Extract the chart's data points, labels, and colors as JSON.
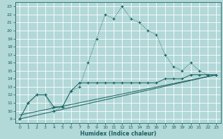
{
  "xlabel": "Humidex (Indice chaleur)",
  "bg_color": "#b2d8d8",
  "grid_color": "#ffffff",
  "line_color": "#1a6060",
  "xlim": [
    -0.5,
    23.5
  ],
  "ylim": [
    8.5,
    23.5
  ],
  "xticks": [
    0,
    1,
    2,
    3,
    4,
    5,
    6,
    7,
    8,
    9,
    10,
    11,
    12,
    13,
    14,
    15,
    16,
    17,
    18,
    19,
    20,
    21,
    22,
    23
  ],
  "yticks": [
    9,
    10,
    11,
    12,
    13,
    14,
    15,
    16,
    17,
    18,
    19,
    20,
    21,
    22,
    23
  ],
  "curve1_x": [
    0,
    1,
    2,
    3,
    4,
    5,
    6,
    7,
    8,
    9,
    10,
    11,
    12,
    13,
    14,
    15,
    16,
    17,
    18,
    19,
    20,
    21,
    22,
    23
  ],
  "curve1_y": [
    9,
    11,
    12,
    12,
    10,
    10.5,
    12.5,
    13,
    16,
    19,
    22,
    21.5,
    23,
    21.5,
    21,
    20,
    19.5,
    17,
    15.5,
    15,
    16,
    15,
    14.5,
    14.5
  ],
  "curve2_x": [
    0,
    1,
    2,
    3,
    4,
    5,
    6,
    7,
    8,
    9,
    10,
    11,
    12,
    13,
    14,
    15,
    16,
    17,
    18,
    19,
    20,
    21,
    22,
    23
  ],
  "curve2_y": [
    9,
    11,
    12,
    12,
    10.5,
    10.5,
    12.5,
    13.5,
    13.5,
    13.5,
    13.5,
    13.5,
    13.5,
    13.5,
    13.5,
    13.5,
    13.5,
    14,
    14,
    14,
    14.5,
    14.5,
    14.5,
    14.5
  ],
  "curve3_x": [
    0,
    23
  ],
  "curve3_y": [
    9,
    14.5
  ],
  "curve4_x": [
    0,
    23
  ],
  "curve4_y": [
    9,
    14.5
  ]
}
